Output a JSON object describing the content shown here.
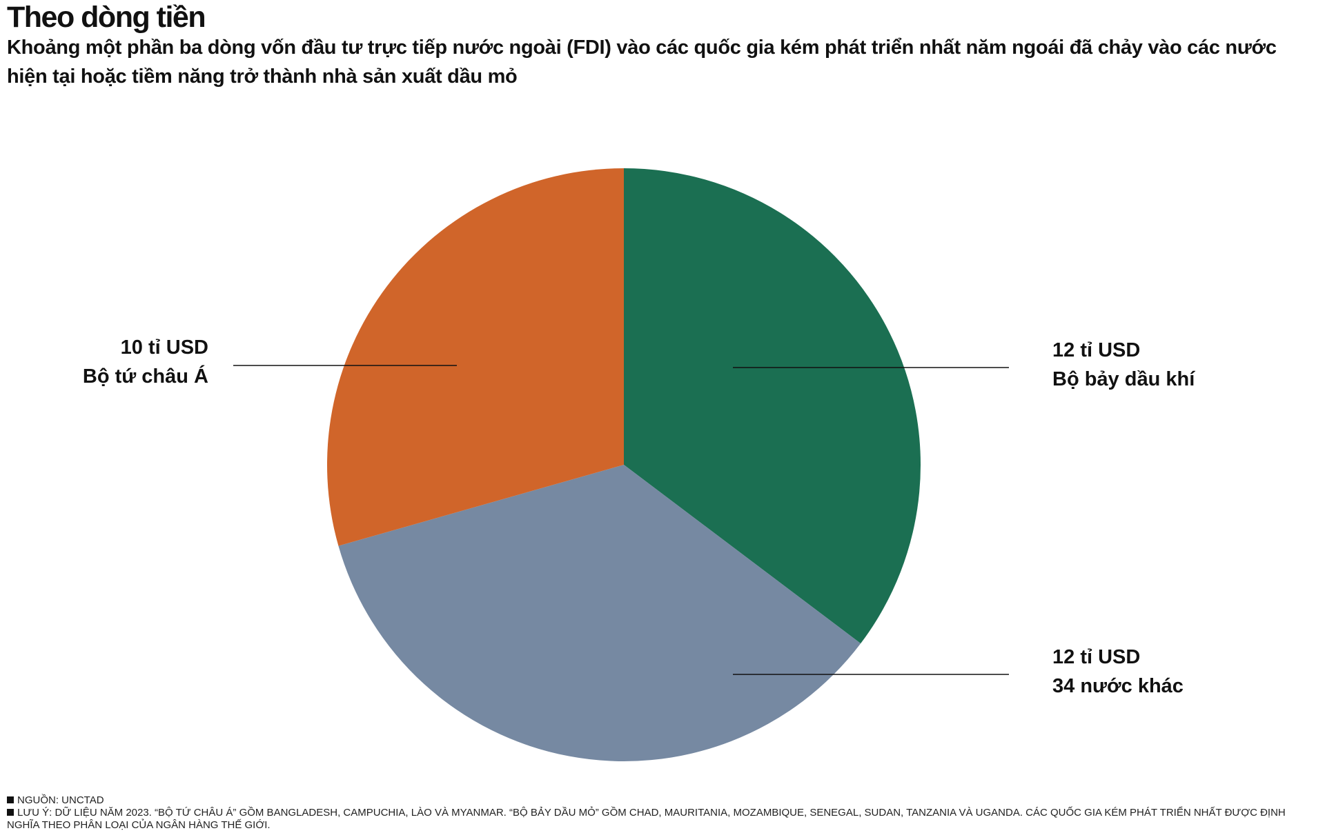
{
  "header": {
    "title": "Theo dòng tiền",
    "subtitle": "Khoảng một phần ba dòng vốn đầu tư trực tiếp nước ngoài (FDI) vào các quốc gia kém phát triển nhất năm ngoái đã chảy vào các nước hiện tại hoặc tiềm năng trở thành nhà sản xuất dầu mỏ"
  },
  "chart_data": {
    "type": "pie",
    "title": "Theo dòng tiền",
    "subtitle": "Khoảng một phần ba dòng vốn đầu tư trực tiếp nước ngoài (FDI) vào các quốc gia kém phát triển nhất năm ngoái đã chảy vào các nước hiện tại hoặc tiềm năng trở thành nhà sản xuất dầu mỏ",
    "unit": "tỉ USD",
    "start_angle_deg": 0,
    "direction": "clockwise",
    "slices": [
      {
        "label": "Bộ bảy dầu khí",
        "value": 12,
        "value_label": "12 tỉ USD",
        "color": "#1B6F52",
        "label_side": "right"
      },
      {
        "label": "34 nước khác",
        "value": 12,
        "value_label": "12 tỉ USD",
        "color": "#7689A2",
        "label_side": "right"
      },
      {
        "label": "Bộ tứ châu Á",
        "value": 10,
        "value_label": "10 tỉ USD",
        "color": "#D0652A",
        "label_side": "left"
      }
    ]
  },
  "footer": {
    "source": "NGUỒN: UNCTAD",
    "note": "LƯU Ý: DỮ LIỆU NĂM 2023. “BỘ TỨ CHÂU Á” GỒM BANGLADESH, CAMPUCHIA, LÀO VÀ MYANMAR. “BỘ BẢY DẦU MỎ” GỒM CHAD, MAURITANIA, MOZAMBIQUE, SENEGAL, SUDAN, TANZANIA VÀ UGANDA. CÁC QUỐC GIA KÉM PHÁT TRIỂN NHẤT ĐƯỢC ĐỊNH NGHĨA THEO PHÂN LOẠI CỦA NGÂN HÀNG THẾ GIỚI."
  }
}
